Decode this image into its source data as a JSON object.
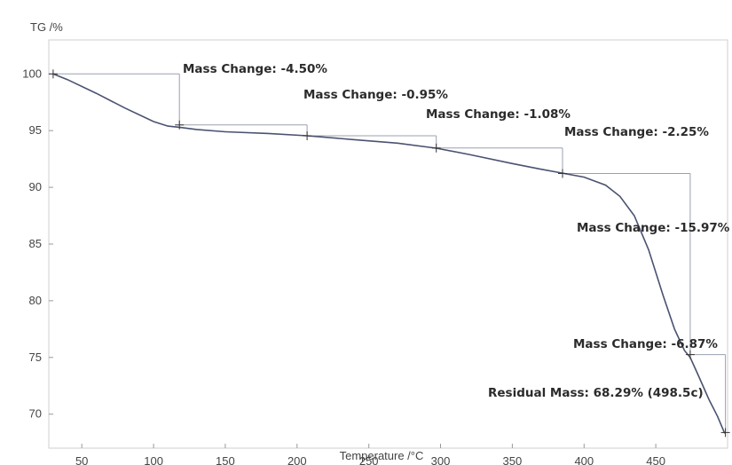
{
  "chart_data": {
    "type": "line",
    "title": "",
    "xlabel": "Temperature /°C",
    "ylabel": "TG /%",
    "xlim": [
      27,
      500
    ],
    "ylim": [
      67,
      103
    ],
    "x_ticks": [
      50,
      100,
      150,
      200,
      250,
      300,
      350,
      400,
      450
    ],
    "y_ticks": [
      70,
      75,
      80,
      85,
      90,
      95,
      100
    ],
    "grid": false,
    "series": [
      {
        "x": [
          30,
          40,
          60,
          80,
          100,
          110,
          118,
          130,
          150,
          180,
          207,
          240,
          270,
          297,
          320,
          350,
          370,
          385,
          400,
          415,
          425,
          435,
          445,
          455,
          463,
          470,
          474,
          480,
          487,
          493,
          498
        ],
        "y": [
          100.0,
          99.5,
          98.3,
          97.0,
          95.8,
          95.4,
          95.3,
          95.1,
          94.9,
          94.75,
          94.55,
          94.2,
          93.9,
          93.45,
          92.9,
          92.1,
          91.6,
          91.25,
          90.9,
          90.2,
          89.2,
          87.5,
          84.5,
          80.5,
          77.5,
          75.6,
          75.0,
          73.3,
          71.3,
          69.8,
          68.3
        ]
      }
    ],
    "steps": [
      {
        "label": "Mass Change: -4.50%",
        "x_start": 30,
        "x_end": 118,
        "y_start": 100.0,
        "y_end": 95.5
      },
      {
        "label": "Mass Change: -0.95%",
        "x_start": 118,
        "x_end": 207,
        "y_start": 95.5,
        "y_end": 94.55
      },
      {
        "label": "Mass Change: -1.08%",
        "x_start": 207,
        "x_end": 297,
        "y_start": 94.55,
        "y_end": 93.47
      },
      {
        "label": "Mass Change: -2.25%",
        "x_start": 297,
        "x_end": 385,
        "y_start": 93.47,
        "y_end": 91.22
      },
      {
        "label": "Mass Change: -15.97%",
        "x_start": 385,
        "x_end": 474,
        "y_start": 91.22,
        "y_end": 75.25
      },
      {
        "label": "Mass Change: -6.87%",
        "x_start": 474,
        "x_end": 498.5,
        "y_start": 75.25,
        "y_end": 68.38
      }
    ],
    "residual": {
      "label": "Residual Mass: 68.29% (498.5c)",
      "x": 498.5,
      "y": 68.29
    },
    "line_color": "#4a5270",
    "guide_color": "#9aa0b0"
  }
}
